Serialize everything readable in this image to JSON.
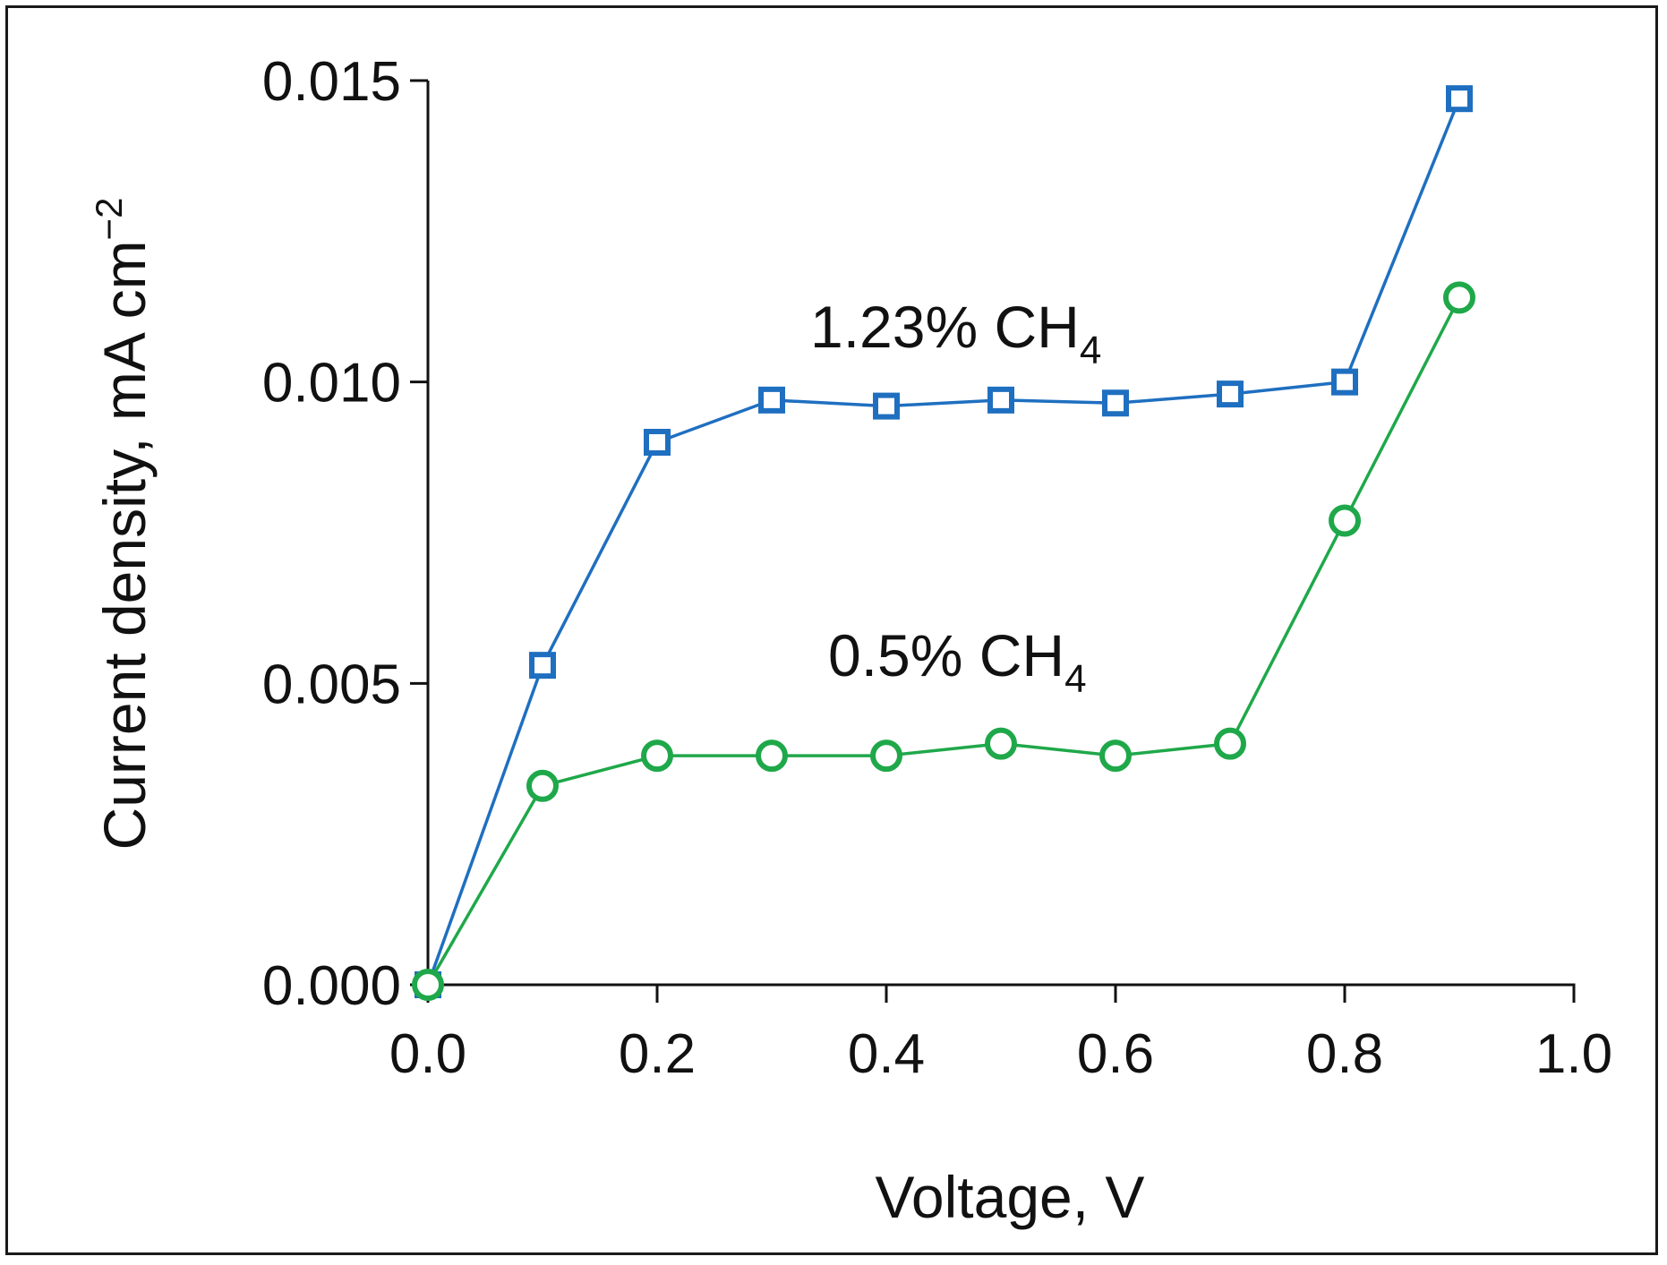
{
  "chart_data": {
    "type": "line",
    "title": "",
    "xlabel": "Voltage, V",
    "ylabel": {
      "main": "Current density, mA cm",
      "superscript": "−2"
    },
    "xlim": [
      0.0,
      1.0
    ],
    "ylim": [
      0.0,
      0.015
    ],
    "grid": false,
    "x_ticks": [
      "0.0",
      "0.2",
      "0.4",
      "0.6",
      "0.8",
      "1.0"
    ],
    "y_ticks": [
      "0.000",
      "0.005",
      "0.010",
      "0.015"
    ],
    "series": [
      {
        "name": "1.23% CH4",
        "label": {
          "main": "1.23% CH",
          "subscript": "4"
        },
        "marker": "square",
        "color": "#1f6fc0",
        "x": [
          0.0,
          0.1,
          0.2,
          0.3,
          0.4,
          0.5,
          0.6,
          0.7,
          0.8,
          0.9
        ],
        "values": [
          0.0,
          0.0053,
          0.009,
          0.0097,
          0.0096,
          0.0097,
          0.00965,
          0.0098,
          0.01,
          0.0147
        ]
      },
      {
        "name": "0.5% CH4",
        "label": {
          "main": "0.5% CH",
          "subscript": "4"
        },
        "marker": "circle",
        "color": "#1fa84a",
        "x": [
          0.0,
          0.1,
          0.2,
          0.3,
          0.4,
          0.5,
          0.6,
          0.7,
          0.8,
          0.9
        ],
        "values": [
          0.0,
          0.0033,
          0.0038,
          0.0038,
          0.0038,
          0.004,
          0.0038,
          0.004,
          0.0077,
          0.0114
        ]
      }
    ]
  }
}
